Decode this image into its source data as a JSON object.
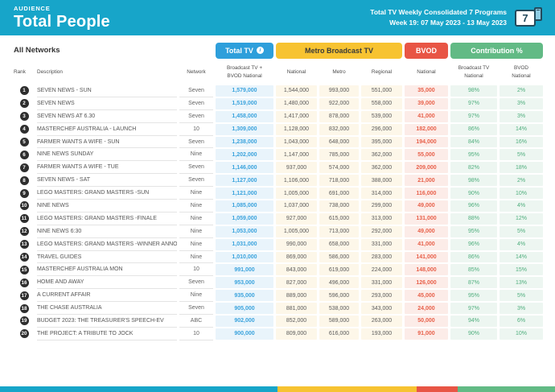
{
  "header": {
    "kicker": "AUDIENCE",
    "title": "Total People",
    "subtitle_line1": "Total TV Weekly Consolidated 7 Programs",
    "subtitle_line2": "Week 19: 07 May 2023 - 13 May 2023",
    "badge_number": "7"
  },
  "filters": {
    "network_label": "All Networks"
  },
  "colors": {
    "header_teal": "#17a5c9",
    "total_tv_blue": "#2e9fdb",
    "metro_yellow": "#f7c331",
    "bvod_red": "#e85545",
    "contribution_green": "#62ba85"
  },
  "table": {
    "group_headers": {
      "total_tv": "Total TV",
      "metro": "Metro Broadcast TV",
      "bvod": "BVOD",
      "contribution": "Contribution %"
    },
    "columns": {
      "rank": "Rank",
      "description": "Description",
      "network": "Network",
      "total_tv": "Broadcast TV +\nBVOD National",
      "national": "National",
      "metro": "Metro",
      "regional": "Regional",
      "bvod_national": "National",
      "contrib_broadcast": "Broadcast TV\nNational",
      "contrib_bvod": "BVOD\nNational"
    },
    "rows": [
      {
        "rank": "1",
        "description": "SEVEN NEWS - SUN",
        "network": "Seven",
        "total_tv": "1,579,000",
        "national": "1,544,000",
        "metro": "993,000",
        "regional": "551,000",
        "bvod": "35,000",
        "contrib_broadcast": "98%",
        "contrib_bvod": "2%"
      },
      {
        "rank": "2",
        "description": "SEVEN NEWS",
        "network": "Seven",
        "total_tv": "1,519,000",
        "national": "1,480,000",
        "metro": "922,000",
        "regional": "558,000",
        "bvod": "39,000",
        "contrib_broadcast": "97%",
        "contrib_bvod": "3%"
      },
      {
        "rank": "3",
        "description": "SEVEN NEWS AT 6.30",
        "network": "Seven",
        "total_tv": "1,458,000",
        "national": "1,417,000",
        "metro": "878,000",
        "regional": "539,000",
        "bvod": "41,000",
        "contrib_broadcast": "97%",
        "contrib_bvod": "3%"
      },
      {
        "rank": "4",
        "description": "MASTERCHEF AUSTRALIA - LAUNCH",
        "network": "10",
        "total_tv": "1,309,000",
        "national": "1,128,000",
        "metro": "832,000",
        "regional": "296,000",
        "bvod": "182,000",
        "contrib_broadcast": "86%",
        "contrib_bvod": "14%"
      },
      {
        "rank": "5",
        "description": "FARMER WANTS A WIFE - SUN",
        "network": "Seven",
        "total_tv": "1,238,000",
        "national": "1,043,000",
        "metro": "648,000",
        "regional": "395,000",
        "bvod": "194,000",
        "contrib_broadcast": "84%",
        "contrib_bvod": "16%"
      },
      {
        "rank": "6",
        "description": "NINE NEWS SUNDAY",
        "network": "Nine",
        "total_tv": "1,202,000",
        "national": "1,147,000",
        "metro": "785,000",
        "regional": "362,000",
        "bvod": "55,000",
        "contrib_broadcast": "95%",
        "contrib_bvod": "5%"
      },
      {
        "rank": "7",
        "description": "FARMER WANTS A WIFE - TUE",
        "network": "Seven",
        "total_tv": "1,146,000",
        "national": "937,000",
        "metro": "574,000",
        "regional": "362,000",
        "bvod": "209,000",
        "contrib_broadcast": "82%",
        "contrib_bvod": "18%"
      },
      {
        "rank": "8",
        "description": "SEVEN NEWS - SAT",
        "network": "Seven",
        "total_tv": "1,127,000",
        "national": "1,106,000",
        "metro": "718,000",
        "regional": "388,000",
        "bvod": "21,000",
        "contrib_broadcast": "98%",
        "contrib_bvod": "2%"
      },
      {
        "rank": "9",
        "description": "LEGO MASTERS: GRAND MASTERS -SUN",
        "network": "Nine",
        "total_tv": "1,121,000",
        "national": "1,005,000",
        "metro": "691,000",
        "regional": "314,000",
        "bvod": "116,000",
        "contrib_broadcast": "90%",
        "contrib_bvod": "10%"
      },
      {
        "rank": "10",
        "description": "NINE NEWS",
        "network": "Nine",
        "total_tv": "1,085,000",
        "national": "1,037,000",
        "metro": "738,000",
        "regional": "299,000",
        "bvod": "49,000",
        "contrib_broadcast": "96%",
        "contrib_bvod": "4%"
      },
      {
        "rank": "11",
        "description": "LEGO MASTERS: GRAND MASTERS -FINALE",
        "network": "Nine",
        "total_tv": "1,059,000",
        "national": "927,000",
        "metro": "615,000",
        "regional": "313,000",
        "bvod": "131,000",
        "contrib_broadcast": "88%",
        "contrib_bvod": "12%"
      },
      {
        "rank": "12",
        "description": "NINE NEWS 6:30",
        "network": "Nine",
        "total_tv": "1,053,000",
        "national": "1,005,000",
        "metro": "713,000",
        "regional": "292,000",
        "bvod": "49,000",
        "contrib_broadcast": "95%",
        "contrib_bvod": "5%"
      },
      {
        "rank": "13",
        "description": "LEGO MASTERS: GRAND MASTERS -WINNER ANNOUNCED",
        "network": "Nine",
        "total_tv": "1,031,000",
        "national": "990,000",
        "metro": "658,000",
        "regional": "331,000",
        "bvod": "41,000",
        "contrib_broadcast": "96%",
        "contrib_bvod": "4%"
      },
      {
        "rank": "14",
        "description": "TRAVEL GUIDES",
        "network": "Nine",
        "total_tv": "1,010,000",
        "national": "869,000",
        "metro": "586,000",
        "regional": "283,000",
        "bvod": "141,000",
        "contrib_broadcast": "86%",
        "contrib_bvod": "14%"
      },
      {
        "rank": "15",
        "description": "MASTERCHEF AUSTRALIA MON",
        "network": "10",
        "total_tv": "991,000",
        "national": "843,000",
        "metro": "619,000",
        "regional": "224,000",
        "bvod": "148,000",
        "contrib_broadcast": "85%",
        "contrib_bvod": "15%"
      },
      {
        "rank": "16",
        "description": "HOME AND AWAY",
        "network": "Seven",
        "total_tv": "953,000",
        "national": "827,000",
        "metro": "496,000",
        "regional": "331,000",
        "bvod": "126,000",
        "contrib_broadcast": "87%",
        "contrib_bvod": "13%"
      },
      {
        "rank": "17",
        "description": "A CURRENT AFFAIR",
        "network": "Nine",
        "total_tv": "935,000",
        "national": "889,000",
        "metro": "596,000",
        "regional": "293,000",
        "bvod": "45,000",
        "contrib_broadcast": "95%",
        "contrib_bvod": "5%"
      },
      {
        "rank": "18",
        "description": "THE CHASE AUSTRALIA",
        "network": "Seven",
        "total_tv": "905,000",
        "national": "881,000",
        "metro": "538,000",
        "regional": "343,000",
        "bvod": "24,000",
        "contrib_broadcast": "97%",
        "contrib_bvod": "3%"
      },
      {
        "rank": "19",
        "description": "BUDGET 2023: THE TREASURER'S SPEECH-EV",
        "network": "ABC",
        "total_tv": "902,000",
        "national": "852,000",
        "metro": "589,000",
        "regional": "263,000",
        "bvod": "50,000",
        "contrib_broadcast": "94%",
        "contrib_bvod": "6%"
      },
      {
        "rank": "20",
        "description": "THE PROJECT: A TRIBUTE TO JOCK",
        "network": "10",
        "total_tv": "900,000",
        "national": "809,000",
        "metro": "616,000",
        "regional": "193,000",
        "bvod": "91,000",
        "contrib_broadcast": "90%",
        "contrib_bvod": "10%"
      }
    ]
  }
}
